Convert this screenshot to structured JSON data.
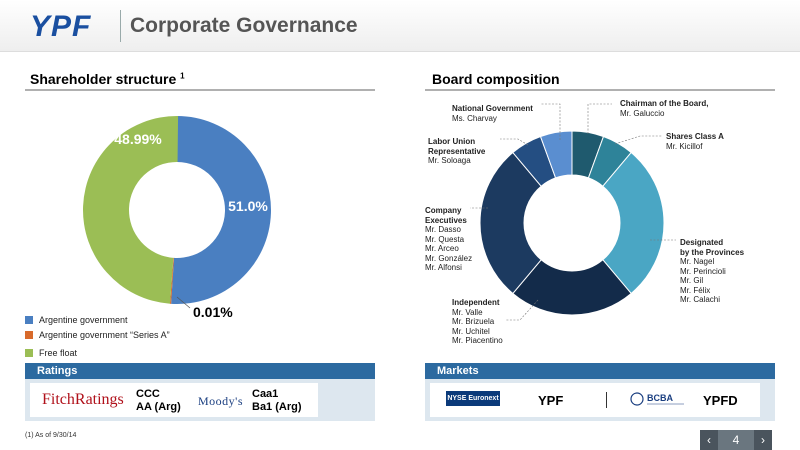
{
  "header": {
    "logo": "YPF",
    "title": "Corporate Governance"
  },
  "shareholder": {
    "title": "Shareholder structure",
    "title_sup": "1",
    "colors": {
      "government": "#4a7fc1",
      "series_a": "#d86a2b",
      "free_float": "#9bbe55"
    },
    "legend": [
      "Argentine government",
      "Argentine government “Series A”",
      "Free float"
    ]
  },
  "chart_data": {
    "type": "pie",
    "variant": "donut",
    "categories": [
      "Argentine government",
      "Argentine government “Series A”",
      "Free float"
    ],
    "values": [
      51.0,
      0.01,
      48.99
    ],
    "labels": [
      "51.0%",
      "0.01%",
      "48.99%"
    ]
  },
  "board": {
    "title": "Board composition",
    "groups": [
      {
        "role": "Chairman of the Board,",
        "members": [
          "Mr. Galuccio"
        ],
        "count": 1,
        "color": "#1f5a6e"
      },
      {
        "role": "Shares Class A",
        "members": [
          "Mr. Kicillof"
        ],
        "count": 1,
        "color": "#2e8399"
      },
      {
        "role_lines": [
          "Designated",
          "by the Provinces"
        ],
        "members": [
          "Mr. Nagel",
          "Mr. Perincioli",
          "Mr. Gil",
          "Mr. Félix",
          "Mr. Calachi"
        ],
        "count": 5,
        "color": "#4aa6c4"
      },
      {
        "role": "Independent",
        "members": [
          "Mr. Valle",
          "Mr. Brizuela",
          "Mr. Uchitel",
          "Mr. Piacentino"
        ],
        "count": 4,
        "color": "#132b4a"
      },
      {
        "role_lines": [
          "Company",
          "Executives"
        ],
        "members": [
          "Mr. Dasso",
          "Mr. Questa",
          "Mr. Arceo",
          "Mr. González",
          "Mr. Alfonsi"
        ],
        "count": 5,
        "color": "#1c3a60"
      },
      {
        "role_lines": [
          "Labor Union",
          "Representative"
        ],
        "members": [
          "Mr. Soloaga"
        ],
        "count": 1,
        "color": "#244e82"
      },
      {
        "role": "National Government",
        "members": [
          "Ms. Charvay"
        ],
        "count": 1,
        "color": "#5a8ed0"
      }
    ]
  },
  "ratings": {
    "title": "Ratings",
    "fitch": {
      "logo": "FitchRatings",
      "lines": [
        "CCC",
        "AA (Arg)"
      ]
    },
    "moodys": {
      "logo": "Moody's",
      "lines": [
        "Caa1",
        "Ba1 (Arg)"
      ]
    }
  },
  "markets": {
    "title": "Markets",
    "nyse": {
      "logo": "NYSE Euronext",
      "ticker": "YPF"
    },
    "bcba": {
      "logo": "BCBA",
      "ticker": "YPFD"
    }
  },
  "footnote": "(1) As of 9/30/14",
  "pager": {
    "prev": "‹",
    "page": "4",
    "next": "›"
  }
}
